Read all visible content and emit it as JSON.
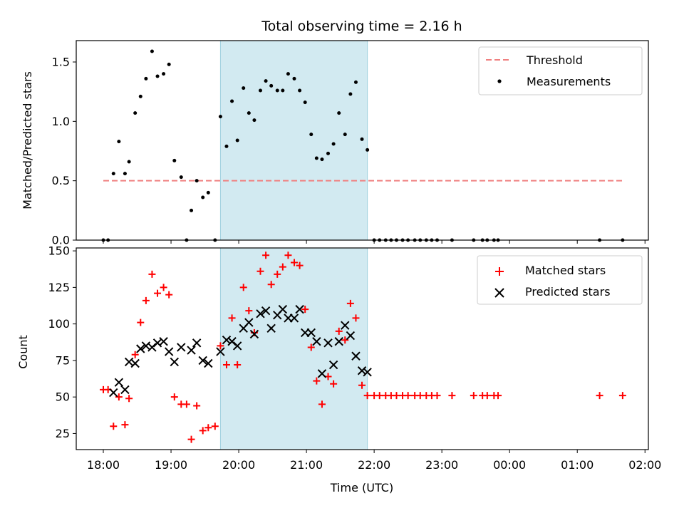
{
  "chart_data": {
    "title": "Total observing time = 2.16 h",
    "xlabel": "Time (UTC)",
    "x_ticks": [
      "18:00",
      "19:00",
      "20:00",
      "21:00",
      "22:00",
      "23:00",
      "00:00",
      "01:00",
      "02:00"
    ],
    "x_range_hours": [
      17.6,
      26.05
    ],
    "highlight_span_hours": [
      19.73,
      21.9
    ],
    "highlight_color": "#add8e6",
    "panels": [
      {
        "type": "scatter",
        "ylabel": "Matched/Predicted stars",
        "ylim": [
          0,
          1.68
        ],
        "y_ticks": [
          "0.0",
          "0.5",
          "1.0",
          "1.5"
        ],
        "y_tick_values": [
          0,
          0.5,
          1.0,
          1.5
        ],
        "legend_position": "top-right",
        "threshold": {
          "name": "Threshold",
          "value": 0.5,
          "x_range": [
            18.0,
            25.67
          ],
          "color": "#f08080"
        },
        "series": [
          {
            "name": "Measurements",
            "color": "#000000",
            "marker": "dot",
            "points": [
              [
                18.0,
                0
              ],
              [
                18.07,
                0
              ],
              [
                18.15,
                0.56
              ],
              [
                18.23,
                0.83
              ],
              [
                18.32,
                0.56
              ],
              [
                18.38,
                0.66
              ],
              [
                18.47,
                1.07
              ],
              [
                18.55,
                1.21
              ],
              [
                18.63,
                1.36
              ],
              [
                18.72,
                1.59
              ],
              [
                18.8,
                1.38
              ],
              [
                18.89,
                1.4
              ],
              [
                18.97,
                1.48
              ],
              [
                19.05,
                0.67
              ],
              [
                19.15,
                0.53
              ],
              [
                19.23,
                0
              ],
              [
                19.3,
                0.25
              ],
              [
                19.38,
                0.5
              ],
              [
                19.47,
                0.36
              ],
              [
                19.55,
                0.4
              ],
              [
                19.65,
                0
              ],
              [
                19.73,
                1.04
              ],
              [
                19.82,
                0.79
              ],
              [
                19.9,
                1.17
              ],
              [
                19.98,
                0.84
              ],
              [
                20.07,
                1.28
              ],
              [
                20.15,
                1.07
              ],
              [
                20.23,
                1.01
              ],
              [
                20.32,
                1.26
              ],
              [
                20.4,
                1.34
              ],
              [
                20.48,
                1.3
              ],
              [
                20.57,
                1.26
              ],
              [
                20.65,
                1.26
              ],
              [
                20.73,
                1.4
              ],
              [
                20.82,
                1.36
              ],
              [
                20.9,
                1.26
              ],
              [
                20.98,
                1.16
              ],
              [
                21.07,
                0.89
              ],
              [
                21.15,
                0.69
              ],
              [
                21.23,
                0.68
              ],
              [
                21.32,
                0.73
              ],
              [
                21.4,
                0.81
              ],
              [
                21.48,
                1.07
              ],
              [
                21.57,
                0.89
              ],
              [
                21.65,
                1.23
              ],
              [
                21.73,
                1.33
              ],
              [
                21.82,
                0.85
              ],
              [
                21.9,
                0.76
              ],
              [
                22.0,
                0
              ],
              [
                22.08,
                0
              ],
              [
                22.17,
                0
              ],
              [
                22.25,
                0
              ],
              [
                22.33,
                0
              ],
              [
                22.42,
                0
              ],
              [
                22.5,
                0
              ],
              [
                22.6,
                0
              ],
              [
                22.68,
                0
              ],
              [
                22.77,
                0
              ],
              [
                22.85,
                0
              ],
              [
                22.93,
                0
              ],
              [
                23.15,
                0
              ],
              [
                23.47,
                0
              ],
              [
                23.6,
                0
              ],
              [
                23.67,
                0
              ],
              [
                23.77,
                0
              ],
              [
                23.83,
                0
              ],
              [
                25.33,
                0
              ],
              [
                25.67,
                0
              ]
            ]
          }
        ]
      },
      {
        "type": "scatter",
        "ylabel": "Count",
        "ylim": [
          14,
          152
        ],
        "y_ticks": [
          "25",
          "50",
          "75",
          "100",
          "125",
          "150"
        ],
        "y_tick_values": [
          25,
          50,
          75,
          100,
          125,
          150
        ],
        "legend_position": "top-right",
        "series": [
          {
            "name": "Matched stars",
            "color": "#ff0000",
            "marker": "plus",
            "points": [
              [
                18.0,
                55
              ],
              [
                18.07,
                55
              ],
              [
                18.15,
                30
              ],
              [
                18.23,
                50
              ],
              [
                18.32,
                31
              ],
              [
                18.38,
                49
              ],
              [
                18.47,
                79
              ],
              [
                18.55,
                101
              ],
              [
                18.63,
                116
              ],
              [
                18.72,
                134
              ],
              [
                18.8,
                121
              ],
              [
                18.89,
                125
              ],
              [
                18.97,
                120
              ],
              [
                19.05,
                50
              ],
              [
                19.15,
                45
              ],
              [
                19.23,
                45
              ],
              [
                19.3,
                21
              ],
              [
                19.38,
                44
              ],
              [
                19.47,
                27
              ],
              [
                19.55,
                29
              ],
              [
                19.65,
                30
              ],
              [
                19.73,
                85
              ],
              [
                19.82,
                72
              ],
              [
                19.9,
                104
              ],
              [
                19.98,
                72
              ],
              [
                20.07,
                125
              ],
              [
                20.15,
                109
              ],
              [
                20.23,
                94
              ],
              [
                20.32,
                136
              ],
              [
                20.4,
                147
              ],
              [
                20.48,
                127
              ],
              [
                20.57,
                134
              ],
              [
                20.65,
                139
              ],
              [
                20.73,
                147
              ],
              [
                20.82,
                142
              ],
              [
                20.9,
                140
              ],
              [
                20.98,
                110
              ],
              [
                21.07,
                84
              ],
              [
                21.15,
                61
              ],
              [
                21.23,
                45
              ],
              [
                21.32,
                64
              ],
              [
                21.4,
                59
              ],
              [
                21.48,
                95
              ],
              [
                21.57,
                89
              ],
              [
                21.65,
                114
              ],
              [
                21.73,
                104
              ],
              [
                21.82,
                58
              ],
              [
                21.9,
                51
              ],
              [
                22.0,
                51
              ],
              [
                22.08,
                51
              ],
              [
                22.17,
                51
              ],
              [
                22.25,
                51
              ],
              [
                22.33,
                51
              ],
              [
                22.42,
                51
              ],
              [
                22.5,
                51
              ],
              [
                22.6,
                51
              ],
              [
                22.68,
                51
              ],
              [
                22.77,
                51
              ],
              [
                22.85,
                51
              ],
              [
                22.93,
                51
              ],
              [
                23.15,
                51
              ],
              [
                23.47,
                51
              ],
              [
                23.6,
                51
              ],
              [
                23.67,
                51
              ],
              [
                23.77,
                51
              ],
              [
                23.83,
                51
              ],
              [
                25.33,
                51
              ],
              [
                25.67,
                51
              ]
            ]
          },
          {
            "name": "Predicted stars",
            "color": "#000000",
            "marker": "x",
            "points": [
              [
                18.15,
                53
              ],
              [
                18.23,
                60
              ],
              [
                18.32,
                55
              ],
              [
                18.38,
                74
              ],
              [
                18.47,
                73
              ],
              [
                18.55,
                83
              ],
              [
                18.63,
                85
              ],
              [
                18.72,
                84
              ],
              [
                18.8,
                87
              ],
              [
                18.89,
                88
              ],
              [
                18.97,
                81
              ],
              [
                19.05,
                74
              ],
              [
                19.15,
                84
              ],
              [
                19.3,
                82
              ],
              [
                19.38,
                87
              ],
              [
                19.47,
                75
              ],
              [
                19.55,
                73
              ],
              [
                19.73,
                81
              ],
              [
                19.82,
                89
              ],
              [
                19.9,
                88
              ],
              [
                19.98,
                85
              ],
              [
                20.07,
                97
              ],
              [
                20.15,
                101
              ],
              [
                20.23,
                93
              ],
              [
                20.32,
                107
              ],
              [
                20.4,
                109
              ],
              [
                20.48,
                97
              ],
              [
                20.57,
                106
              ],
              [
                20.65,
                110
              ],
              [
                20.73,
                104
              ],
              [
                20.82,
                104
              ],
              [
                20.9,
                110
              ],
              [
                20.98,
                94
              ],
              [
                21.07,
                94
              ],
              [
                21.15,
                88
              ],
              [
                21.23,
                66
              ],
              [
                21.32,
                87
              ],
              [
                21.4,
                72
              ],
              [
                21.48,
                88
              ],
              [
                21.57,
                99
              ],
              [
                21.65,
                92
              ],
              [
                21.73,
                78
              ],
              [
                21.82,
                68
              ],
              [
                21.9,
                67
              ]
            ]
          }
        ]
      }
    ]
  }
}
